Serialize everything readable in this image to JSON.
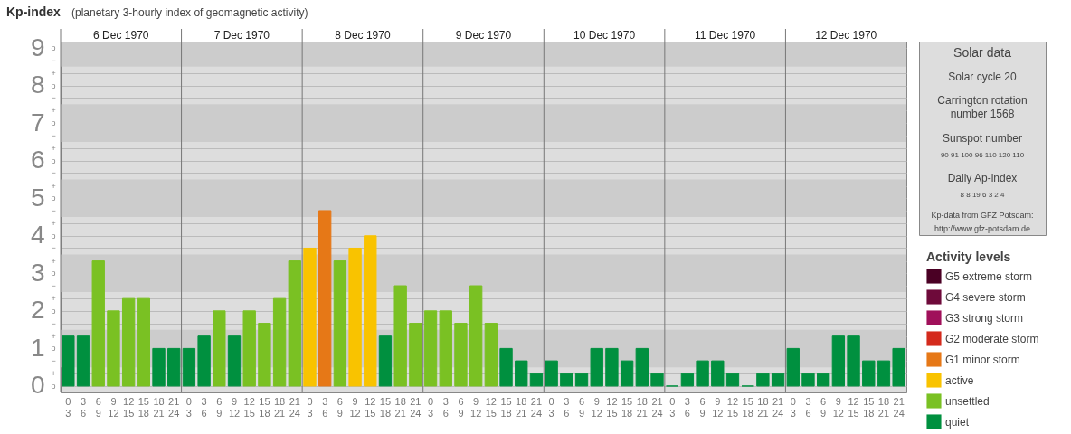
{
  "chart_data": {
    "type": "bar",
    "title": "Kp-index",
    "subtitle": "(planetary 3-hourly index of geomagnetic activity)",
    "categories": [
      "0 3",
      "3 6",
      "6 9",
      "9 12",
      "12 15",
      "15 18",
      "18 21",
      "21 24",
      "0 3",
      "3 6",
      "6 9",
      "9 12",
      "12 15",
      "15 18",
      "18 21",
      "21 24",
      "0 3",
      "3 6",
      "6 9",
      "9 12",
      "12 15",
      "15 18",
      "18 21",
      "21 24",
      "0 3",
      "3 6",
      "6 9",
      "9 12",
      "12 15",
      "15 18",
      "18 21",
      "21 24",
      "0 3",
      "3 6",
      "6 9",
      "9 12",
      "12 15",
      "15 18",
      "18 21",
      "21 24",
      "0 3",
      "3 6",
      "6 9",
      "9 12",
      "12 15",
      "15 18",
      "18 21",
      "21 24",
      "0 3",
      "3 6",
      "6 9",
      "9 12",
      "12 15",
      "15 18",
      "18 21",
      "21 24"
    ],
    "series": [
      {
        "name": "G5 extreme storm",
        "color": "#4a0024",
        "values": [
          null,
          null,
          null,
          null,
          null,
          null,
          null,
          null,
          null,
          null,
          null,
          null,
          null,
          null,
          null,
          null,
          null,
          null,
          null,
          null,
          null,
          null,
          null,
          null,
          null,
          null,
          null,
          null,
          null,
          null,
          null,
          null,
          null,
          null,
          null,
          null,
          null,
          null,
          null,
          null,
          null,
          null,
          null,
          null,
          null,
          null,
          null,
          null,
          null,
          null,
          null,
          null,
          null,
          null,
          null,
          null
        ]
      },
      {
        "name": "G4 severe storm",
        "color": "#6e0a3a",
        "values": [
          null,
          null,
          null,
          null,
          null,
          null,
          null,
          null,
          null,
          null,
          null,
          null,
          null,
          null,
          null,
          null,
          null,
          null,
          null,
          null,
          null,
          null,
          null,
          null,
          null,
          null,
          null,
          null,
          null,
          null,
          null,
          null,
          null,
          null,
          null,
          null,
          null,
          null,
          null,
          null,
          null,
          null,
          null,
          null,
          null,
          null,
          null,
          null,
          null,
          null,
          null,
          null,
          null,
          null,
          null,
          null
        ]
      },
      {
        "name": "G3 strong storm",
        "color": "#a0105a",
        "values": [
          null,
          null,
          null,
          null,
          null,
          null,
          null,
          null,
          null,
          null,
          null,
          null,
          null,
          null,
          null,
          null,
          null,
          null,
          null,
          null,
          null,
          null,
          null,
          null,
          null,
          null,
          null,
          null,
          null,
          null,
          null,
          null,
          null,
          null,
          null,
          null,
          null,
          null,
          null,
          null,
          null,
          null,
          null,
          null,
          null,
          null,
          null,
          null,
          null,
          null,
          null,
          null,
          null,
          null,
          null,
          null
        ]
      },
      {
        "name": "G2 moderate storm",
        "color": "#d42a1c",
        "values": [
          null,
          null,
          null,
          null,
          null,
          null,
          null,
          null,
          null,
          null,
          null,
          null,
          null,
          null,
          null,
          null,
          null,
          null,
          null,
          null,
          null,
          null,
          null,
          null,
          null,
          null,
          null,
          null,
          null,
          null,
          null,
          null,
          null,
          null,
          null,
          null,
          null,
          null,
          null,
          null,
          null,
          null,
          null,
          null,
          null,
          null,
          null,
          null,
          null,
          null,
          null,
          null,
          null,
          null,
          null,
          null
        ]
      },
      {
        "name": "G1 minor storm",
        "color": "#e67817",
        "values": [
          null,
          null,
          null,
          null,
          null,
          null,
          null,
          null,
          null,
          null,
          null,
          null,
          null,
          null,
          null,
          null,
          null,
          4.67,
          null,
          null,
          null,
          null,
          null,
          null,
          null,
          null,
          null,
          null,
          null,
          null,
          null,
          null,
          null,
          null,
          null,
          null,
          null,
          null,
          null,
          null,
          null,
          null,
          null,
          null,
          null,
          null,
          null,
          null,
          null,
          null,
          null,
          null,
          null,
          null,
          null,
          null
        ]
      },
      {
        "name": "active",
        "color": "#f9c300",
        "values": [
          null,
          null,
          null,
          null,
          null,
          null,
          null,
          null,
          null,
          null,
          null,
          null,
          null,
          null,
          null,
          null,
          3.67,
          null,
          null,
          3.67,
          4,
          null,
          null,
          null,
          null,
          null,
          null,
          null,
          null,
          null,
          null,
          null,
          null,
          null,
          null,
          null,
          null,
          null,
          null,
          null,
          null,
          null,
          null,
          null,
          null,
          null,
          null,
          null,
          null,
          null,
          null,
          null,
          null,
          null,
          null,
          null
        ]
      },
      {
        "name": "unsettled",
        "color": "#7ac123",
        "values": [
          null,
          null,
          3.33,
          2,
          2.33,
          2.33,
          null,
          null,
          null,
          null,
          2,
          null,
          2,
          1.67,
          2.33,
          3.33,
          null,
          null,
          3.33,
          null,
          null,
          null,
          2.67,
          1.67,
          2,
          2,
          1.67,
          2.67,
          1.67,
          null,
          null,
          null,
          null,
          null,
          null,
          null,
          null,
          null,
          null,
          null,
          null,
          null,
          null,
          null,
          null,
          null,
          null,
          null,
          null,
          null,
          null,
          null,
          null,
          null,
          null,
          null
        ]
      },
      {
        "name": "quiet",
        "color": "#00903f",
        "values": [
          1.33,
          1.33,
          null,
          null,
          null,
          null,
          1,
          1,
          1,
          1.33,
          null,
          1.33,
          null,
          null,
          null,
          null,
          null,
          null,
          null,
          null,
          null,
          1.33,
          null,
          null,
          null,
          null,
          null,
          null,
          null,
          1,
          0.67,
          0.33,
          0.67,
          0.33,
          0.33,
          1,
          1,
          0.67,
          1,
          0.33,
          0,
          0.33,
          0.67,
          0.67,
          0.33,
          0,
          0.33,
          0.33,
          1,
          0.33,
          0.33,
          1.33,
          1.33,
          0.67,
          0.67,
          1
        ]
      }
    ],
    "ylim": [
      -0.17,
      9.17
    ],
    "yticks": [
      0,
      {
        "value": 0.33,
        "label": null
      },
      {
        "value": 0.67,
        "label": null
      },
      1,
      {
        "value": 1.33,
        "label": null
      },
      {
        "value": 1.67,
        "label": null
      },
      2,
      {
        "value": 2.33,
        "label": null
      },
      {
        "value": 2.67,
        "label": null
      },
      3,
      {
        "value": 3.33,
        "label": null
      },
      {
        "value": 3.67,
        "label": null
      },
      4,
      {
        "value": 4.33,
        "label": null
      },
      {
        "value": 4.67,
        "label": null
      },
      5,
      {
        "value": 5.33,
        "label": null
      },
      {
        "value": 5.67,
        "label": null
      },
      6,
      {
        "value": 6.33,
        "label": null
      },
      {
        "value": 6.67,
        "label": null
      },
      7,
      {
        "value": 7.33,
        "label": null
      },
      {
        "value": 7.67,
        "label": null
      },
      8,
      {
        "value": 8.33,
        "label": null
      },
      {
        "value": 8.67,
        "label": null
      },
      9
    ],
    "bands": [
      {
        "axis": "y",
        "from": 0.5,
        "to": 1.5,
        "color": "#cccccc"
      },
      {
        "axis": "y",
        "from": 2.5,
        "to": 3.5,
        "color": "#cccccc"
      },
      {
        "axis": "y",
        "from": 4.5,
        "to": 5.5,
        "color": "#cccccc"
      },
      {
        "axis": "y",
        "from": 6.5,
        "to": 7.5,
        "color": "#cccccc"
      },
      {
        "axis": "y",
        "from": 8.5,
        "to": 9.17,
        "color": "#cccccc"
      }
    ],
    "grid": true,
    "legend": "right",
    "legend_title": "Activity levels",
    "annotations": [
      "6 Dec 1970",
      "7 Dec 1970",
      "8 Dec 1970",
      "9 Dec 1970",
      "10 Dec 1970",
      "11 Dec 1970",
      "12 Dec 1970",
      "Solar data",
      "Solar cycle 20",
      "Carrington rotation number 1568",
      "Sunspot number",
      "90 91 100 96 110 120 110",
      "Daily Ap-index",
      "8 8 19 6 3 2 4",
      "Kp-data from GFZ Potsdam: http://www.gfz-potsdam.de",
      "o",
      "+",
      "−",
      "o",
      "+",
      "−",
      "o",
      "+",
      "−",
      "o",
      "+",
      "−",
      "o",
      "+",
      "−",
      "o",
      "+",
      "−",
      "o",
      "+",
      "−",
      "o",
      "+",
      "−",
      "o",
      "+",
      "−",
      "o"
    ]
  }
}
